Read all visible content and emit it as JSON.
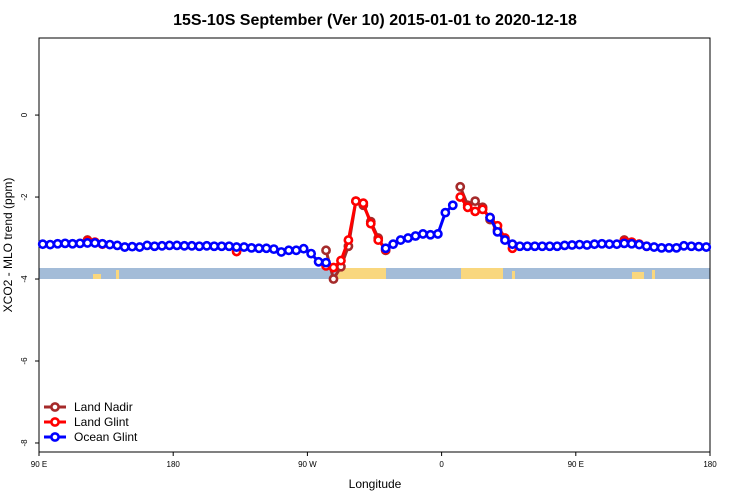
{
  "chart_data": {
    "type": "line",
    "title": "15S-10S September (Ver 10)   2015-01-01 to 2020-12-18",
    "x_label": "Longitude",
    "y_label": "XCO2 - MLO trend (ppm)",
    "xlim": [
      90,
      540
    ],
    "ylim": [
      -8.22,
      1.88
    ],
    "xticks": [
      {
        "value": 90,
        "label": "90 E"
      },
      180,
      {
        "value": 270,
        "label": "90 W"
      },
      {
        "value": 360,
        "label": "0"
      },
      {
        "value": 450,
        "label": "90 E"
      },
      {
        "value": 540,
        "label": "180"
      }
    ],
    "yticks": [
      0,
      -2,
      -4,
      -6,
      -8
    ],
    "legend": "bottom-left",
    "x": [
      92.5,
      97.5,
      102.5,
      107.5,
      112.5,
      117.5,
      122.5,
      127.5,
      132.5,
      137.5,
      142.5,
      147.5,
      152.5,
      157.5,
      162.5,
      167.5,
      172.5,
      177.5,
      182.5,
      187.5,
      192.5,
      197.5,
      202.5,
      207.5,
      212.5,
      217.5,
      222.5,
      227.5,
      232.5,
      237.5,
      242.5,
      247.5,
      252.5,
      257.5,
      262.5,
      267.5,
      272.5,
      277.5,
      282.5,
      287.5,
      292.5,
      297.5,
      302.5,
      307.5,
      312.5,
      317.5,
      322.5,
      327.5,
      332.5,
      337.5,
      342.5,
      347.5,
      352.5,
      357.5,
      362.5,
      367.5,
      372.5,
      377.5,
      382.5,
      387.5,
      392.5,
      397.5,
      402.5,
      407.5,
      412.5,
      417.5,
      422.5,
      427.5,
      432.5,
      437.5,
      442.5,
      447.5,
      452.5,
      457.5,
      462.5,
      467.5,
      472.5,
      477.5,
      482.5,
      487.5,
      492.5,
      497.5,
      502.5,
      507.5,
      512.5,
      517.5,
      522.5,
      527.5,
      532.5,
      537.5
    ],
    "series": [
      {
        "name": "Land Nadir",
        "color": "#a52a2a",
        "values": [
          null,
          null,
          null,
          null,
          null,
          null,
          -3.05,
          null,
          null,
          null,
          null,
          null,
          null,
          null,
          null,
          null,
          null,
          null,
          null,
          null,
          null,
          null,
          null,
          null,
          null,
          null,
          null,
          null,
          null,
          null,
          null,
          null,
          null,
          null,
          null,
          null,
          null,
          null,
          -3.3,
          -4.0,
          -3.7,
          -3.2,
          -2.1,
          -2.2,
          -2.6,
          -3.0,
          -3.3,
          null,
          null,
          null,
          null,
          null,
          null,
          null,
          null,
          null,
          -1.75,
          -2.2,
          -2.1,
          -2.25,
          -2.55,
          -2.8,
          null,
          null,
          null,
          null,
          null,
          null,
          null,
          null,
          null,
          null,
          null,
          null,
          null,
          null,
          null,
          null,
          -3.05,
          null,
          -3.15,
          null,
          null,
          null,
          null,
          null,
          null,
          null,
          null,
          null
        ]
      },
      {
        "name": "Land Glint",
        "color": "#ff0000",
        "values": [
          null,
          null,
          null,
          null,
          null,
          null,
          -3.07,
          -3.1,
          -3.15,
          null,
          null,
          null,
          null,
          null,
          null,
          null,
          null,
          null,
          null,
          null,
          null,
          null,
          null,
          null,
          null,
          null,
          -3.33,
          null,
          null,
          null,
          null,
          null,
          null,
          null,
          null,
          null,
          null,
          null,
          -3.68,
          -3.72,
          -3.55,
          -3.05,
          -2.1,
          -2.15,
          -2.65,
          -3.05,
          -3.28,
          null,
          null,
          null,
          null,
          null,
          null,
          null,
          null,
          null,
          -2.0,
          -2.25,
          -2.35,
          -2.3,
          -2.5,
          -2.7,
          -3.0,
          -3.25,
          null,
          null,
          null,
          null,
          null,
          null,
          null,
          null,
          null,
          null,
          null,
          null,
          null,
          null,
          -3.08,
          -3.1,
          -3.15,
          -3.2,
          null,
          null,
          null,
          null,
          null,
          null,
          null,
          null
        ]
      },
      {
        "name": "Ocean Glint",
        "color": "#0000ff",
        "values": [
          -3.15,
          -3.16,
          -3.14,
          -3.13,
          -3.14,
          -3.13,
          -3.12,
          -3.12,
          -3.14,
          -3.16,
          -3.18,
          -3.22,
          -3.21,
          -3.22,
          -3.18,
          -3.2,
          -3.19,
          -3.18,
          -3.18,
          -3.19,
          -3.19,
          -3.2,
          -3.19,
          -3.2,
          -3.2,
          -3.2,
          -3.22,
          -3.22,
          -3.24,
          -3.25,
          -3.25,
          -3.27,
          -3.34,
          -3.3,
          -3.3,
          -3.26,
          -3.38,
          -3.58,
          -3.6,
          null,
          null,
          null,
          null,
          null,
          null,
          null,
          -3.25,
          -3.15,
          -3.05,
          -3.0,
          -2.95,
          -2.9,
          -2.92,
          -2.9,
          -2.38,
          -2.2,
          null,
          null,
          null,
          null,
          -2.5,
          -2.85,
          -3.05,
          -3.15,
          -3.2,
          -3.2,
          -3.2,
          -3.2,
          -3.2,
          -3.2,
          -3.18,
          -3.17,
          -3.16,
          -3.17,
          -3.15,
          -3.14,
          -3.15,
          -3.15,
          -3.13,
          -3.14,
          -3.16,
          -3.2,
          -3.22,
          -3.24,
          -3.24,
          -3.24,
          -3.19,
          -3.2,
          -3.21,
          -3.22
        ]
      }
    ]
  }
}
